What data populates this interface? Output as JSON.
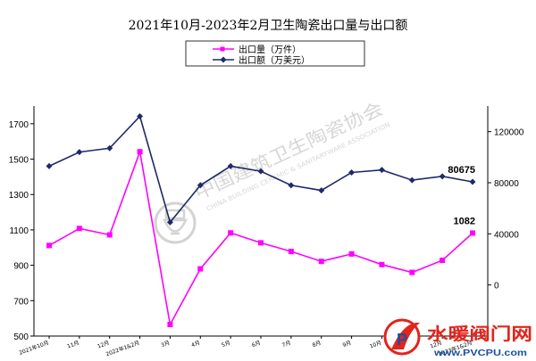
{
  "chart_data": {
    "type": "line",
    "title": "2021年10月-2023年2月卫生陶瓷出口量与出口额",
    "categories": [
      "2021年10月",
      "11月",
      "12月",
      "2022年1&2月",
      "3月",
      "4月",
      "5月",
      "6月",
      "7月",
      "8月",
      "9月",
      "10月",
      "11月",
      "12月",
      "2023年1&2月"
    ],
    "series": [
      {
        "name": "出口量（万件）",
        "axis": "left",
        "color": "#ff00ff",
        "marker": "square",
        "values": [
          1012,
          1108,
          1072,
          1542,
          565,
          880,
          1083,
          1027,
          978,
          922,
          964,
          904,
          860,
          928,
          1082
        ],
        "last_label": "1082"
      },
      {
        "name": "出口额（万美元）",
        "axis": "right",
        "color": "#1f2a6b",
        "marker": "diamond",
        "values": [
          93000,
          104000,
          107000,
          132000,
          49000,
          78000,
          93000,
          89000,
          78000,
          74000,
          88000,
          90000,
          82000,
          85000,
          80675
        ],
        "last_label": "80675"
      }
    ],
    "y_left": {
      "ylim": [
        500,
        1800
      ],
      "ticks": [
        "500",
        "700",
        "900",
        "1100",
        "1300",
        "1500",
        "1700"
      ]
    },
    "y_right": {
      "ylim": [
        -40000,
        140000
      ],
      "ticks": [
        "0",
        "40000",
        "80000",
        "120000"
      ]
    },
    "legend_position": "top-center",
    "grid": false
  },
  "watermark": {
    "chinese": "中国建筑卫生陶瓷协会",
    "english": "CHINA BUILDING CERAMIC & SANITARYWARE ASSOCIATION"
  },
  "logo": {
    "name": "水暖阀门网",
    "url": "www.PVCPU.com"
  }
}
